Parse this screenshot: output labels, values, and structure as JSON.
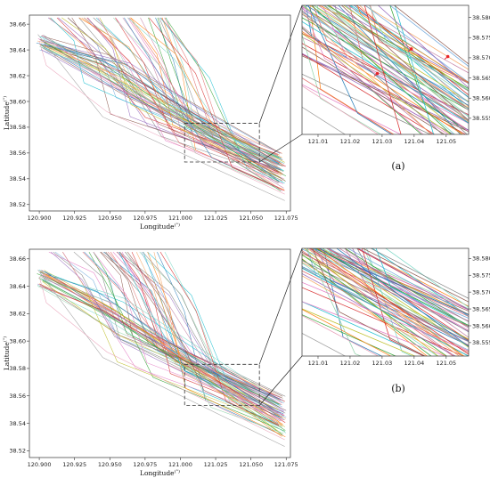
{
  "chart_data": [
    {
      "id": "a-main",
      "type": "line",
      "caption": "(a)",
      "xlabel": "Longitude",
      "xlabel_sup": "(°)",
      "ylabel": "Latitude",
      "ylabel_sup": "(°)",
      "xlim": [
        120.893,
        121.078
      ],
      "ylim": [
        38.515,
        38.667
      ],
      "xticks": [
        "120.900",
        "120.925",
        "120.950",
        "120.975",
        "121.000",
        "121.025",
        "121.050",
        "121.075"
      ],
      "xtick_values": [
        120.9,
        120.925,
        120.95,
        120.975,
        121.0,
        121.025,
        121.05,
        121.075
      ],
      "yticks": [
        "38.52",
        "38.54",
        "38.56",
        "38.58",
        "38.60",
        "38.62",
        "38.64",
        "38.66"
      ],
      "ytick_values": [
        38.52,
        38.54,
        38.56,
        38.58,
        38.6,
        38.62,
        38.64,
        38.66
      ],
      "zoom_box": {
        "x": [
          121.003,
          121.056
        ],
        "y": [
          38.553,
          38.583
        ]
      },
      "series_description": "about 70 vessel trajectories running from the upper-left toward the lower-right"
    },
    {
      "id": "a-inset",
      "type": "line",
      "xlim": [
        121.005,
        121.057
      ],
      "ylim": [
        38.551,
        38.583
      ],
      "xticks": [
        "121.01",
        "121.02",
        "121.03",
        "121.04",
        "121.05"
      ],
      "xtick_values": [
        121.01,
        121.02,
        121.03,
        121.04,
        121.05
      ],
      "yticks": [
        "38.555",
        "38.560",
        "38.565",
        "38.570",
        "38.575",
        "38.580"
      ],
      "ytick_values": [
        38.555,
        38.56,
        38.565,
        38.57,
        38.575,
        38.58
      ],
      "red_markers": [
        {
          "x": 121.0285,
          "y": 38.5661
        },
        {
          "x": 121.0391,
          "y": 38.5722
        },
        {
          "x": 121.0505,
          "y": 38.5703
        }
      ]
    },
    {
      "id": "b-main",
      "type": "line",
      "caption": "(b)",
      "xlabel": "Longitude",
      "xlabel_sup": "(°)",
      "ylabel": "Latitude",
      "ylabel_sup": "(°)",
      "xlim": [
        120.893,
        121.078
      ],
      "ylim": [
        38.515,
        38.667
      ],
      "xticks": [
        "120.900",
        "120.925",
        "120.950",
        "120.975",
        "121.000",
        "121.025",
        "121.050",
        "121.075"
      ],
      "xtick_values": [
        120.9,
        120.925,
        120.95,
        120.975,
        121.0,
        121.025,
        121.05,
        121.075
      ],
      "yticks": [
        "38.52",
        "38.54",
        "38.56",
        "38.58",
        "38.60",
        "38.62",
        "38.64",
        "38.66"
      ],
      "ytick_values": [
        38.52,
        38.54,
        38.56,
        38.58,
        38.6,
        38.62,
        38.64,
        38.66
      ],
      "zoom_box": {
        "x": [
          121.003,
          121.056
        ],
        "y": [
          38.553,
          38.583
        ]
      },
      "series_description": "about 70 vessel trajectories running from the upper-left toward the lower-right"
    },
    {
      "id": "b-inset",
      "type": "line",
      "xlim": [
        121.005,
        121.057
      ],
      "ylim": [
        38.551,
        38.583
      ],
      "xticks": [
        "121.01",
        "121.02",
        "121.03",
        "121.04",
        "121.05"
      ],
      "xtick_values": [
        121.01,
        121.02,
        121.03,
        121.04,
        121.05
      ],
      "yticks": [
        "38.555",
        "38.560",
        "38.565",
        "38.570",
        "38.575",
        "38.580"
      ],
      "ytick_values": [
        38.555,
        38.56,
        38.565,
        38.57,
        38.575,
        38.58
      ],
      "red_markers": []
    }
  ],
  "palette": [
    "#1f77b4",
    "#ff7f0e",
    "#2ca02c",
    "#d62728",
    "#9467bd",
    "#8c564b",
    "#e377c2",
    "#7f7f7f",
    "#bcbd22",
    "#17becf",
    "#8fd3a8",
    "#f4a460",
    "#6fa8dc",
    "#c27ba0",
    "#76d7c4",
    "#e06666"
  ],
  "marker_color": "#e8262a"
}
